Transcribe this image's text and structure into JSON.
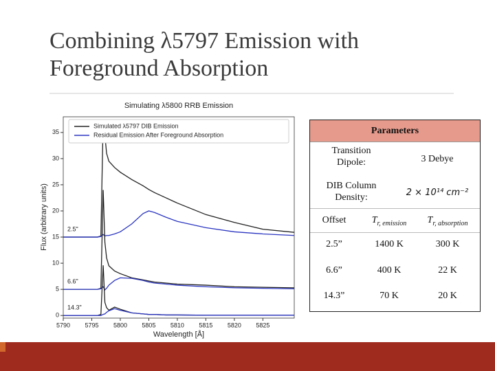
{
  "slide": {
    "title_lines": [
      "Combining λ5797 Emission with",
      "Foreground Absorption"
    ]
  },
  "chart_data": {
    "type": "line",
    "title": "Simulating λ5800 RRB Emission",
    "x_label": "Wavelength [Å]",
    "y_label": "Flux (arbitrary units)",
    "x": [
      5790,
      5796,
      5796.6,
      5797,
      5797.3,
      5797.6,
      5798,
      5799,
      5800,
      5802,
      5804,
      5805,
      5806,
      5808,
      5810,
      5815,
      5820,
      5825,
      5830.5
    ],
    "series": [
      {
        "name": "Simulated λ5797 DIB Emission",
        "color": "#222222",
        "values": [
          15,
          15,
          15.2,
          37.5,
          34.5,
          31,
          29.5,
          28.3,
          27.4,
          26,
          24.8,
          24.1,
          23.5,
          22.5,
          21.5,
          19.3,
          17.8,
          16.5,
          15.9
        ]
      },
      {
        "name": "Residual Emission After Foreground Absorption",
        "color": "#2a35c0",
        "values": [
          15,
          15,
          15.1,
          15.5,
          15.2,
          15.3,
          15.3,
          15.6,
          16,
          17.5,
          19.5,
          20,
          19.7,
          18.8,
          18,
          16.8,
          16,
          15.6,
          15.3
        ]
      },
      {
        "color": "#222222",
        "values": [
          5,
          5,
          5.2,
          24,
          14,
          11,
          9.5,
          8.5,
          8,
          7.2,
          6.8,
          6.6,
          6.4,
          6.2,
          6,
          5.8,
          5.5,
          5.4,
          5.3
        ]
      },
      {
        "color": "#2a35c0",
        "values": [
          5,
          5,
          5.1,
          5.5,
          4.9,
          5.2,
          5.8,
          6.7,
          7.2,
          7.1,
          6.7,
          6.4,
          6.2,
          6,
          5.8,
          5.5,
          5.3,
          5.2,
          5.1
        ]
      },
      {
        "color": "#222222",
        "values": [
          0,
          0,
          0.2,
          9.6,
          2.5,
          1.5,
          1,
          1.6,
          1.2,
          0.5,
          0.3,
          0.2,
          0.2,
          0.1,
          0.1,
          0.05,
          0.05,
          0.05,
          0.05
        ]
      },
      {
        "color": "#2a35c0",
        "values": [
          0,
          0,
          0,
          0.2,
          0.3,
          0.6,
          0.9,
          1.3,
          1,
          0.5,
          0.3,
          0.2,
          0.2,
          0.1,
          0.1,
          0.05,
          0.05,
          0.05,
          0.05
        ]
      }
    ],
    "annotations": [
      "2.5\"",
      "6.6\"",
      "14.3\""
    ],
    "annotation_color": "#d9534f",
    "xlim": [
      5790,
      5830.5
    ],
    "ylim": [
      -0.5,
      38
    ],
    "xticks": [
      5790,
      5795,
      5800,
      5805,
      5810,
      5815,
      5820,
      5825
    ],
    "yticks": [
      0,
      5,
      10,
      15,
      20,
      25,
      30,
      35
    ],
    "legend": "upper left",
    "grid": false
  },
  "table": {
    "header": "Parameters",
    "rows": [
      [
        "Transition Dipole:",
        "3 Debye"
      ],
      [
        "DIB Column Density:",
        "2 × 10¹⁴ cm⁻²"
      ],
      [
        "Offset",
        {
          "main": "T",
          "sub": "r, emission"
        },
        {
          "main": "T",
          "sub": "r, absorption"
        }
      ],
      [
        "2.5”",
        "1400 K",
        "300 K"
      ],
      [
        "6.6”",
        "400 K",
        "22 K"
      ],
      [
        "14.3”",
        "70 K",
        "20 K"
      ]
    ]
  }
}
